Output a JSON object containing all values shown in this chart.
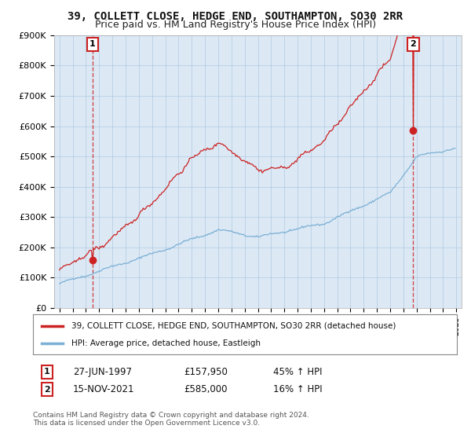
{
  "title": "39, COLLETT CLOSE, HEDGE END, SOUTHAMPTON, SO30 2RR",
  "subtitle": "Price paid vs. HM Land Registry's House Price Index (HPI)",
  "ylim": [
    0,
    900000
  ],
  "yticks": [
    0,
    100000,
    200000,
    300000,
    400000,
    500000,
    600000,
    700000,
    800000,
    900000
  ],
  "ytick_labels": [
    "£0",
    "£100K",
    "£200K",
    "£300K",
    "£400K",
    "£500K",
    "£600K",
    "£700K",
    "£800K",
    "£900K"
  ],
  "hpi_color": "#7bafd4",
  "price_color": "#cc2222",
  "legend_line1": "39, COLLETT CLOSE, HEDGE END, SOUTHAMPTON, SO30 2RR (detached house)",
  "legend_line2": "HPI: Average price, detached house, Eastleigh",
  "annotation1_date": "27-JUN-1997",
  "annotation1_price": "£157,950",
  "annotation1_hpi": "45% ↑ HPI",
  "annotation2_date": "15-NOV-2021",
  "annotation2_price": "£585,000",
  "annotation2_hpi": "16% ↑ HPI",
  "copyright_text": "Contains HM Land Registry data © Crown copyright and database right 2024.\nThis data is licensed under the Open Government Licence v3.0.",
  "bg_color": "#ffffff",
  "plot_bg_color": "#dce9f5",
  "grid_color": "#b0c8e0",
  "title_fontsize": 10,
  "subtitle_fontsize": 9
}
